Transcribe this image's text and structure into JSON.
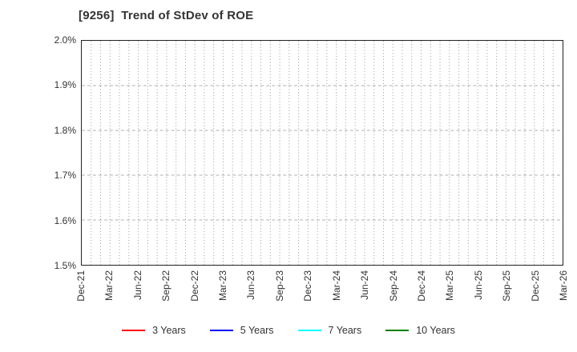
{
  "chart_data": {
    "type": "line",
    "title": "[9256]  Trend of StDev of ROE",
    "xlabel": "",
    "ylabel": "",
    "ylim": [
      1.5,
      2.0
    ],
    "y_tick_step": 0.1,
    "y_tick_labels": [
      "2.0%",
      "1.9%",
      "1.8%",
      "1.7%",
      "1.6%",
      "1.5%"
    ],
    "categories": [
      "Dec-21",
      "Mar-22",
      "Jun-22",
      "Sep-22",
      "Dec-22",
      "Mar-23",
      "Jun-23",
      "Sep-23",
      "Dec-23",
      "Mar-24",
      "Jun-24",
      "Sep-24",
      "Dec-24",
      "Mar-25",
      "Jun-25",
      "Sep-25",
      "Dec-25",
      "Mar-26"
    ],
    "months_per_major_tick": 3,
    "minor_vertical_grid_intervals": 51,
    "grid": true,
    "legend_position": "bottom",
    "series": [
      {
        "name": "3 Years",
        "color": "#ff0000",
        "values": []
      },
      {
        "name": "5 Years",
        "color": "#0000ff",
        "values": []
      },
      {
        "name": "7 Years",
        "color": "#00ffff",
        "values": []
      },
      {
        "name": "10 Years",
        "color": "#008000",
        "values": []
      }
    ]
  },
  "colors": {
    "background": "#ffffff",
    "plot_border": "#222222",
    "grid_horizontal": "#b0b0b0",
    "grid_vertical": "#a8a8a8",
    "text": "#333333"
  }
}
